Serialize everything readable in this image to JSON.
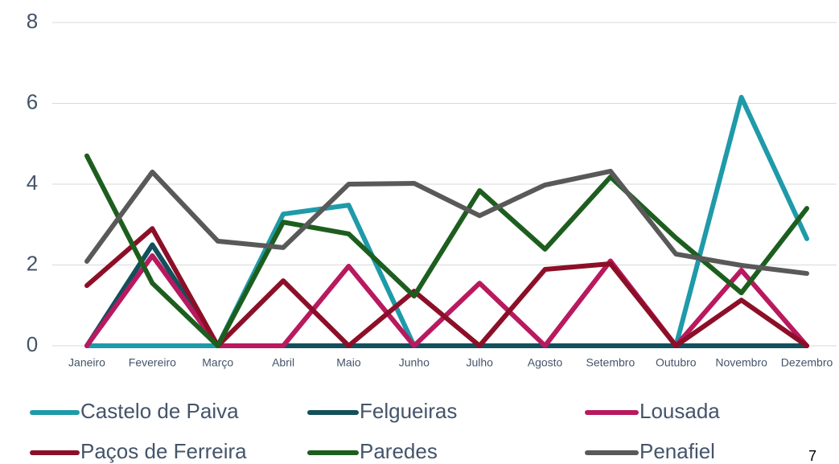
{
  "chart_data": {
    "type": "line",
    "categories": [
      "Janeiro",
      "Fevereiro",
      "Março",
      "Abril",
      "Maio",
      "Junho",
      "Julho",
      "Agosto",
      "Setembro",
      "Outubro",
      "Novembro",
      "Dezembro"
    ],
    "series": [
      {
        "name": "Castelo de Paiva",
        "color": "#1f9aa8",
        "values": [
          0,
          0,
          0,
          3.26,
          3.48,
          0,
          0,
          0,
          0,
          0,
          6.15,
          2.65
        ]
      },
      {
        "name": "Felgueiras",
        "color": "#12505c",
        "values": [
          0,
          2.5,
          0,
          0,
          0,
          0,
          0,
          0,
          0,
          0,
          0,
          0
        ]
      },
      {
        "name": "Lousada",
        "color": "#b8195f",
        "values": [
          0,
          2.23,
          0,
          0,
          1.97,
          0,
          1.55,
          0,
          2.1,
          0,
          1.87,
          0
        ]
      },
      {
        "name": "Paços de Ferreira",
        "color": "#8c0f28",
        "values": [
          1.49,
          2.9,
          0,
          1.61,
          0,
          1.35,
          0,
          1.89,
          2.03,
          0,
          1.13,
          0
        ]
      },
      {
        "name": "Paredes",
        "color": "#1d5e1f",
        "values": [
          4.7,
          1.55,
          0,
          3.06,
          2.77,
          1.23,
          3.84,
          2.39,
          4.18,
          2.67,
          1.31,
          3.4
        ]
      },
      {
        "name": "Penafiel",
        "color": "#595959",
        "values": [
          2.09,
          4.3,
          2.59,
          2.43,
          4.0,
          4.02,
          3.22,
          3.98,
          4.32,
          2.27,
          1.99,
          1.79
        ]
      }
    ],
    "ylim": [
      0,
      8
    ],
    "yticks": [
      0,
      2,
      4,
      6,
      8
    ],
    "grid": true
  },
  "page_number": "7"
}
